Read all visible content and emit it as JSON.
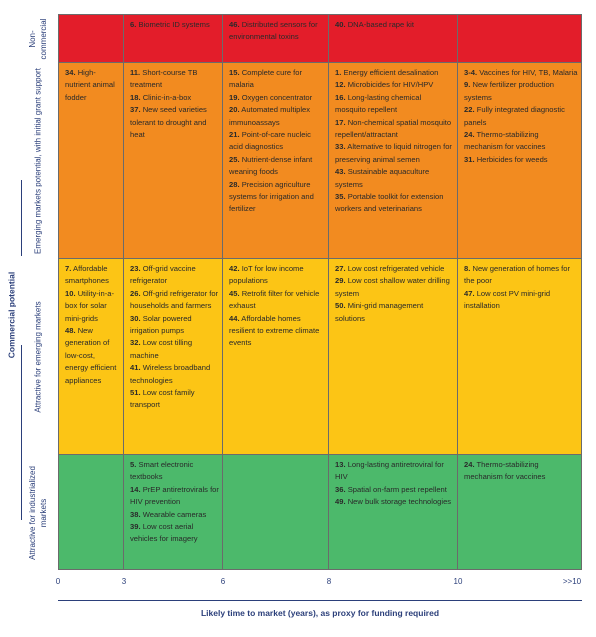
{
  "row_labels_title": "Commercial potential",
  "x_axis": {
    "title": "Likely time to market (years), as proxy for funding required",
    "ticks": [
      "0",
      "3",
      "6",
      "8",
      "10",
      ">>10"
    ]
  },
  "rows": [
    {
      "label": "Non-commercial",
      "cells": [
        [],
        [
          [
            "6.",
            "Biometric ID systems"
          ]
        ],
        [
          [
            "46.",
            "Distributed sensors for environmental toxins"
          ]
        ],
        [
          [
            "40.",
            "DNA-based rape kit"
          ]
        ],
        []
      ]
    },
    {
      "label": "Emerging markets potential, with initial grant support",
      "cells": [
        [
          [
            "34.",
            "High-nutrient animal fodder"
          ]
        ],
        [
          [
            "11.",
            "Short-course TB treatment"
          ],
          [
            "18.",
            "Clinic-in-a-box"
          ],
          [
            "37.",
            "New seed varieties tolerant to drought and heat"
          ]
        ],
        [
          [
            "15.",
            "Complete cure for malaria"
          ],
          [
            "19.",
            "Oxygen concentrator"
          ],
          [
            "20.",
            "Automated multiplex immunoassays"
          ],
          [
            "21.",
            "Point-of-care nucleic acid diagnostics"
          ],
          [
            "25.",
            "Nutrient-dense infant weaning foods"
          ],
          [
            "28.",
            "Precision agriculture systems for irrigation and fertilizer"
          ]
        ],
        [
          [
            "1.",
            "Energy efficient desalination"
          ],
          [
            "12.",
            "Microbicides for HIV/HPV"
          ],
          [
            "16.",
            "Long-lasting chemical mosquito repellent"
          ],
          [
            "17.",
            "Non-chemical spatial mosquito repellent/attractant"
          ],
          [
            "33.",
            "Alternative to liquid nitrogen for preserving animal semen"
          ],
          [
            "43.",
            "Sustainable aquaculture systems"
          ],
          [
            "35.",
            "Portable toolkit for extension workers and veterinarians"
          ]
        ],
        [
          [
            "3-4.",
            "Vaccines for HIV, TB, Malaria"
          ],
          [
            "9.",
            "New fertilizer production systems"
          ],
          [
            "22.",
            "Fully integrated diagnostic panels"
          ],
          [
            "24.",
            "Thermo-stabilizing mechanism for vaccines"
          ],
          [
            "31.",
            "Herbicides for weeds"
          ]
        ]
      ]
    },
    {
      "label": "Attractive for emerging markets",
      "cells": [
        [
          [
            "7.",
            "Affordable smartphones"
          ],
          [
            "10.",
            "Utility-in-a-box for solar mini-grids"
          ],
          [
            "48.",
            "New generation of low-cost, energy efficient appliances"
          ]
        ],
        [
          [
            "23.",
            "Off-grid vaccine refrigerator"
          ],
          [
            "26.",
            "Off-grid refrigerator for households and farmers"
          ],
          [
            "30.",
            "Solar powered irrigation pumps"
          ],
          [
            "32.",
            "Low cost tilling machine"
          ],
          [
            "41.",
            "Wireless broadband technologies"
          ],
          [
            "51.",
            "Low cost family transport"
          ]
        ],
        [
          [
            "42.",
            "IoT for low income populations"
          ],
          [
            "45.",
            "Retrofit filter for vehicle exhaust"
          ],
          [
            "44.",
            "Affordable homes resilient to extreme climate events"
          ]
        ],
        [
          [
            "27.",
            "Low cost refrigerated vehicle"
          ],
          [
            "29.",
            "Low cost shallow water drilling system"
          ],
          [
            "50.",
            "Mini-grid management solutions"
          ]
        ],
        [
          [
            "8.",
            "New generation of homes for the poor"
          ],
          [
            "47.",
            "Low cost PV mini-grid installation"
          ]
        ]
      ]
    },
    {
      "label": "Attractive for industrialized markets",
      "cells": [
        [],
        [
          [
            "5.",
            "Smart electronic textbooks"
          ],
          [
            "14.",
            "PrEP antiretrovirals for HIV prevention"
          ],
          [
            "38.",
            "Wearable cameras"
          ],
          [
            "39.",
            "Low cost aerial vehicles for imagery"
          ]
        ],
        [],
        [
          [
            "13.",
            "Long-lasting antiretroviral for HIV"
          ],
          [
            "36.",
            "Spatial on-farm pest repellent"
          ],
          [
            "49.",
            "New bulk storage technologies"
          ]
        ],
        [
          [
            "24.",
            "Thermo-stabilizing mechanism for vaccines"
          ]
        ]
      ]
    }
  ]
}
